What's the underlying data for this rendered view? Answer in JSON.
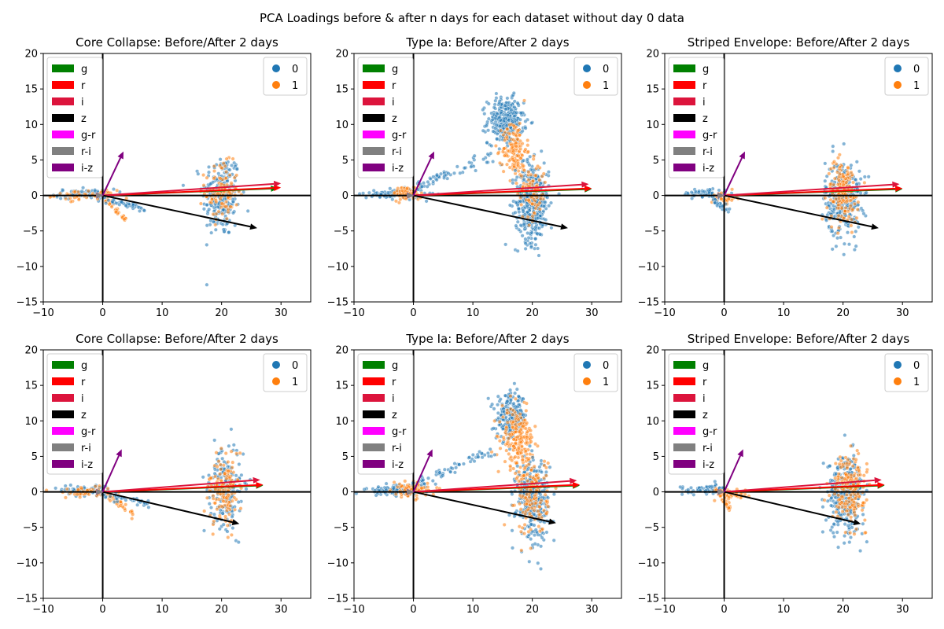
{
  "figure": {
    "suptitle": "PCA Loadings before & after n days for each dataset without day 0 data"
  },
  "colors": {
    "class0": "#1f77b4",
    "class1": "#ff7f0e",
    "g": "#008000",
    "r": "#ff0000",
    "i": "#dc143c",
    "z": "#000000",
    "g-r": "#ff00ff",
    "r-i": "#808080",
    "i-z": "#800080"
  },
  "chart_data": [
    {
      "type": "scatter",
      "title": "Core Collapse: Before/After 2 days",
      "xlim": [
        -10,
        35
      ],
      "ylim": [
        -15,
        20
      ],
      "xticks": [
        "−10",
        "0",
        "10",
        "20",
        "30"
      ],
      "yticks": [
        "−15",
        "−10",
        "−5",
        "0",
        "5",
        "10",
        "15",
        "20"
      ],
      "grid": false,
      "legend_loadings": {
        "placement": "top-left",
        "entries": [
          "g",
          "r",
          "i",
          "z",
          "g-r",
          "r-i",
          "i-z"
        ]
      },
      "legend_classes": {
        "placement": "top-right",
        "entries": [
          "0",
          "1"
        ]
      },
      "loadings": [
        {
          "name": "g",
          "x": 29.5,
          "y": 1.0
        },
        {
          "name": "r",
          "x": 30.0,
          "y": 1.1
        },
        {
          "name": "i",
          "x": 30.0,
          "y": 1.7
        },
        {
          "name": "z",
          "x": 26.0,
          "y": -4.6
        },
        {
          "name": "g-r",
          "x": 0.1,
          "y": 0.0
        },
        {
          "name": "r-i",
          "x": 0.1,
          "y": 0.0
        },
        {
          "name": "i-z",
          "x": 3.5,
          "y": 6.2
        }
      ],
      "clusters": [
        {
          "class": "0",
          "n": 220,
          "cx": 20,
          "cy": 0,
          "sx": 1.6,
          "sy": 3.0
        },
        {
          "class": "1",
          "n": 110,
          "cx": 20,
          "cy": 0.5,
          "sx": 1.4,
          "sy": 2.0
        },
        {
          "class": "0",
          "n": 70,
          "cx": -3,
          "cy": 0.2,
          "sx": 2.5,
          "sy": 0.35
        },
        {
          "class": "1",
          "n": 50,
          "cx": -3,
          "cy": 0.0,
          "sx": 2.5,
          "sy": 0.35
        }
      ],
      "tails": [
        {
          "class": "1",
          "n": 40,
          "x0": 0,
          "y0": 0,
          "x1": 4,
          "y1": -3.5,
          "spread": 0.3
        },
        {
          "class": "0",
          "n": 40,
          "x0": 0,
          "y0": -0.5,
          "x1": 7,
          "y1": -1.9,
          "spread": 0.25
        }
      ]
    },
    {
      "type": "scatter",
      "title": "Type Ia: Before/After 2 days",
      "xlim": [
        -10,
        35
      ],
      "ylim": [
        -15,
        20
      ],
      "xticks": [
        "−10",
        "0",
        "10",
        "20",
        "30"
      ],
      "yticks": [
        "−15",
        "−10",
        "−5",
        "0",
        "5",
        "10",
        "15",
        "20"
      ],
      "grid": false,
      "legend_loadings": {
        "placement": "top-left",
        "entries": [
          "g",
          "r",
          "i",
          "z",
          "g-r",
          "r-i",
          "i-z"
        ]
      },
      "legend_classes": {
        "placement": "top-right",
        "entries": [
          "0",
          "1"
        ]
      },
      "loadings": [
        {
          "name": "g",
          "x": 30.0,
          "y": 0.9
        },
        {
          "name": "r",
          "x": 30.0,
          "y": 1.0
        },
        {
          "name": "i",
          "x": 29.5,
          "y": 1.6
        },
        {
          "name": "z",
          "x": 26.0,
          "y": -4.6
        },
        {
          "name": "g-r",
          "x": 0.1,
          "y": 0.0
        },
        {
          "name": "r-i",
          "x": 0.1,
          "y": 0.0
        },
        {
          "name": "i-z",
          "x": 3.5,
          "y": 6.2
        }
      ],
      "clusters": [
        {
          "class": "0",
          "n": 300,
          "cx": 15.5,
          "cy": 10.5,
          "sx": 1.5,
          "sy": 1.6
        },
        {
          "class": "1",
          "n": 140,
          "cx": 17,
          "cy": 6.5,
          "sx": 1.0,
          "sy": 2.0
        },
        {
          "class": "0",
          "n": 380,
          "cx": 20,
          "cy": -1.0,
          "sx": 1.4,
          "sy": 2.8
        },
        {
          "class": "1",
          "n": 90,
          "cx": 20,
          "cy": 0.5,
          "sx": 1.2,
          "sy": 2.0
        },
        {
          "class": "0",
          "n": 100,
          "cx": -3,
          "cy": 0.2,
          "sx": 2.5,
          "sy": 0.35
        },
        {
          "class": "1",
          "n": 80,
          "cx": -1,
          "cy": 0.3,
          "sx": 1.2,
          "sy": 0.5
        }
      ],
      "tails": [
        {
          "class": "0",
          "n": 60,
          "x0": 0,
          "y0": 1,
          "x1": 14,
          "y1": 6,
          "spread": 0.4
        }
      ]
    },
    {
      "type": "scatter",
      "title": "Striped Envelope: Before/After 2 days",
      "xlim": [
        -10,
        35
      ],
      "ylim": [
        -15,
        20
      ],
      "xticks": [
        "−10",
        "0",
        "10",
        "20",
        "30"
      ],
      "yticks": [
        "−15",
        "−10",
        "−5",
        "0",
        "5",
        "10",
        "15",
        "20"
      ],
      "grid": false,
      "legend_loadings": {
        "placement": "top-left",
        "entries": [
          "g",
          "r",
          "i",
          "z",
          "g-r",
          "r-i",
          "i-z"
        ]
      },
      "legend_classes": {
        "placement": "top-right",
        "entries": [
          "0",
          "1"
        ]
      },
      "loadings": [
        {
          "name": "g",
          "x": 30.0,
          "y": 0.9
        },
        {
          "name": "r",
          "x": 30.0,
          "y": 1.0
        },
        {
          "name": "i",
          "x": 29.5,
          "y": 1.6
        },
        {
          "name": "z",
          "x": 26.0,
          "y": -4.6
        },
        {
          "name": "g-r",
          "x": 0.1,
          "y": 0.0
        },
        {
          "name": "r-i",
          "x": 0.1,
          "y": 0.0
        },
        {
          "name": "i-z",
          "x": 3.5,
          "y": 6.2
        }
      ],
      "clusters": [
        {
          "class": "0",
          "n": 320,
          "cx": 20,
          "cy": -0.5,
          "sx": 1.5,
          "sy": 2.7
        },
        {
          "class": "1",
          "n": 170,
          "cx": 20,
          "cy": 0.5,
          "sx": 1.3,
          "sy": 2.2
        },
        {
          "class": "0",
          "n": 60,
          "cx": -3,
          "cy": 0.3,
          "sx": 2.0,
          "sy": 0.35
        },
        {
          "class": "1",
          "n": 40,
          "cx": 0,
          "cy": -0.3,
          "sx": 1.0,
          "sy": 0.4
        }
      ],
      "tails": [
        {
          "class": "0",
          "n": 25,
          "x0": -2,
          "y0": -0.5,
          "x1": 1,
          "y1": -2.3,
          "spread": 0.2
        }
      ]
    },
    {
      "type": "scatter",
      "title": "Core Collapse: Before/After 2 days",
      "xlim": [
        -10,
        35
      ],
      "ylim": [
        -15,
        20
      ],
      "xticks": [
        "−10",
        "0",
        "10",
        "20",
        "30"
      ],
      "yticks": [
        "−15",
        "−10",
        "−5",
        "0",
        "5",
        "10",
        "15",
        "20"
      ],
      "grid": false,
      "legend_loadings": {
        "placement": "top-left",
        "entries": [
          "g",
          "r",
          "i",
          "z",
          "g-r",
          "r-i",
          "i-z"
        ]
      },
      "legend_classes": {
        "placement": "top-right",
        "entries": [
          "0",
          "1"
        ]
      },
      "loadings": [
        {
          "name": "g",
          "x": 27.0,
          "y": 0.9
        },
        {
          "name": "r",
          "x": 27.0,
          "y": 1.0
        },
        {
          "name": "i",
          "x": 26.5,
          "y": 1.7
        },
        {
          "name": "z",
          "x": 23.0,
          "y": -4.5
        },
        {
          "name": "g-r",
          "x": 0.1,
          "y": 0.0
        },
        {
          "name": "r-i",
          "x": 0.1,
          "y": 0.0
        },
        {
          "name": "i-z",
          "x": 3.2,
          "y": 6.0
        }
      ],
      "clusters": [
        {
          "class": "0",
          "n": 180,
          "cx": 20.5,
          "cy": 0,
          "sx": 1.5,
          "sy": 2.8
        },
        {
          "class": "1",
          "n": 140,
          "cx": 20.5,
          "cy": 0.3,
          "sx": 1.4,
          "sy": 2.5
        },
        {
          "class": "0",
          "n": 70,
          "cx": -3,
          "cy": 0.2,
          "sx": 2.5,
          "sy": 0.35
        },
        {
          "class": "1",
          "n": 50,
          "cx": -3,
          "cy": 0.0,
          "sx": 2.5,
          "sy": 0.35
        }
      ],
      "tails": [
        {
          "class": "1",
          "n": 40,
          "x0": 0,
          "y0": 0,
          "x1": 5,
          "y1": -3.0,
          "spread": 0.3
        },
        {
          "class": "0",
          "n": 35,
          "x0": 0,
          "y0": -0.5,
          "x1": 8,
          "y1": -1.8,
          "spread": 0.25
        }
      ]
    },
    {
      "type": "scatter",
      "title": "Type Ia: Before/After 2 days",
      "xlim": [
        -10,
        35
      ],
      "ylim": [
        -15,
        20
      ],
      "xticks": [
        "−10",
        "0",
        "10",
        "20",
        "30"
      ],
      "yticks": [
        "−15",
        "−10",
        "−5",
        "0",
        "5",
        "10",
        "15",
        "20"
      ],
      "grid": false,
      "legend_loadings": {
        "placement": "top-left",
        "entries": [
          "g",
          "r",
          "i",
          "z",
          "g-r",
          "r-i",
          "i-z"
        ]
      },
      "legend_classes": {
        "placement": "top-right",
        "entries": [
          "0",
          "1"
        ]
      },
      "loadings": [
        {
          "name": "g",
          "x": 28.0,
          "y": 0.9
        },
        {
          "name": "r",
          "x": 28.0,
          "y": 1.0
        },
        {
          "name": "i",
          "x": 27.5,
          "y": 1.6
        },
        {
          "name": "z",
          "x": 24.0,
          "y": -4.4
        },
        {
          "name": "g-r",
          "x": 0.1,
          "y": 0.0
        },
        {
          "name": "r-i",
          "x": 0.1,
          "y": 0.0
        },
        {
          "name": "i-z",
          "x": 3.2,
          "y": 6.0
        }
      ],
      "clusters": [
        {
          "class": "0",
          "n": 220,
          "cx": 16.5,
          "cy": 10.5,
          "sx": 1.3,
          "sy": 1.6
        },
        {
          "class": "1",
          "n": 200,
          "cx": 17.5,
          "cy": 7.5,
          "sx": 1.3,
          "sy": 2.0
        },
        {
          "class": "0",
          "n": 330,
          "cx": 20,
          "cy": -1.0,
          "sx": 1.4,
          "sy": 2.8
        },
        {
          "class": "1",
          "n": 150,
          "cx": 20,
          "cy": -0.5,
          "sx": 1.3,
          "sy": 2.8
        },
        {
          "class": "0",
          "n": 100,
          "cx": -3,
          "cy": 0.2,
          "sx": 2.5,
          "sy": 0.35
        },
        {
          "class": "1",
          "n": 90,
          "cx": -0.5,
          "cy": 0.3,
          "sx": 1.5,
          "sy": 0.5
        }
      ],
      "tails": [
        {
          "class": "0",
          "n": 60,
          "x0": 0,
          "y0": 1,
          "x1": 14,
          "y1": 6,
          "spread": 0.4
        }
      ]
    },
    {
      "type": "scatter",
      "title": "Striped Envelope: Before/After 2 days",
      "xlim": [
        -10,
        35
      ],
      "ylim": [
        -15,
        20
      ],
      "xticks": [
        "−10",
        "0",
        "10",
        "20",
        "30"
      ],
      "yticks": [
        "−15",
        "−10",
        "−5",
        "0",
        "5",
        "10",
        "15",
        "20"
      ],
      "grid": false,
      "legend_loadings": {
        "placement": "top-left",
        "entries": [
          "g",
          "r",
          "i",
          "z",
          "g-r",
          "r-i",
          "i-z"
        ]
      },
      "legend_classes": {
        "placement": "top-right",
        "entries": [
          "0",
          "1"
        ]
      },
      "loadings": [
        {
          "name": "g",
          "x": 27.0,
          "y": 0.9
        },
        {
          "name": "r",
          "x": 27.0,
          "y": 1.0
        },
        {
          "name": "i",
          "x": 26.5,
          "y": 1.7
        },
        {
          "name": "z",
          "x": 23.0,
          "y": -4.5
        },
        {
          "name": "g-r",
          "x": 0.1,
          "y": 0.0
        },
        {
          "name": "r-i",
          "x": 0.1,
          "y": 0.0
        },
        {
          "name": "i-z",
          "x": 3.2,
          "y": 6.0
        }
      ],
      "clusters": [
        {
          "class": "0",
          "n": 340,
          "cx": 20.5,
          "cy": -0.3,
          "sx": 1.5,
          "sy": 2.7
        },
        {
          "class": "1",
          "n": 200,
          "cx": 21,
          "cy": 0.5,
          "sx": 1.4,
          "sy": 2.3
        },
        {
          "class": "0",
          "n": 60,
          "cx": -3,
          "cy": 0.3,
          "sx": 2.0,
          "sy": 0.35
        },
        {
          "class": "1",
          "n": 50,
          "cx": 1,
          "cy": -0.3,
          "sx": 1.5,
          "sy": 0.4
        }
      ],
      "tails": [
        {
          "class": "1",
          "n": 25,
          "x0": -1,
          "y0": -0.3,
          "x1": 1,
          "y1": -2.4,
          "spread": 0.2
        }
      ]
    }
  ]
}
